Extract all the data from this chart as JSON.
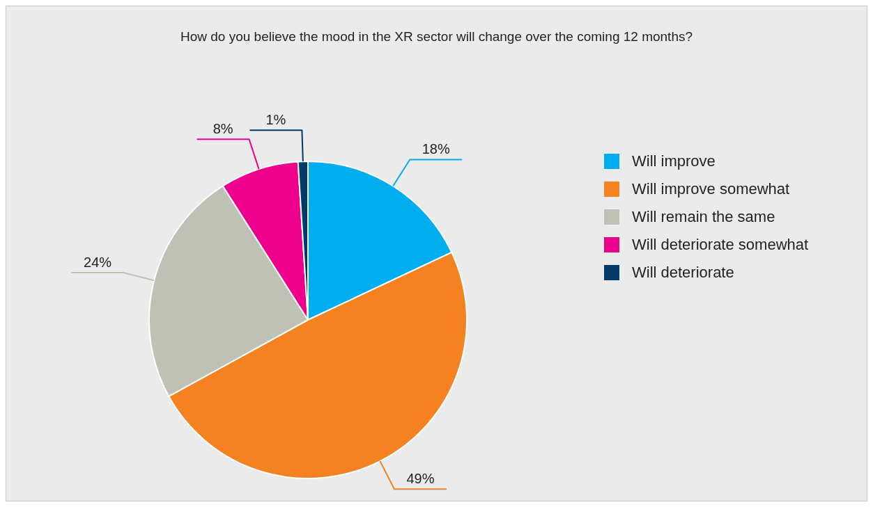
{
  "chart_data": {
    "type": "pie",
    "title": "How do you believe the mood in the XR sector will change over the coming 12 months?",
    "categories": [
      "Will improve",
      "Will improve somewhat",
      "Will remain the same",
      "Will deteriorate somewhat",
      "Will deteriorate"
    ],
    "values": [
      18,
      49,
      24,
      8,
      1
    ],
    "value_labels": [
      "18%",
      "49%",
      "24%",
      "8%",
      "1%"
    ],
    "colors": [
      "#00aeef",
      "#f58220",
      "#bec1b3",
      "#ec008c",
      "#003a6a"
    ],
    "legend": "right"
  }
}
